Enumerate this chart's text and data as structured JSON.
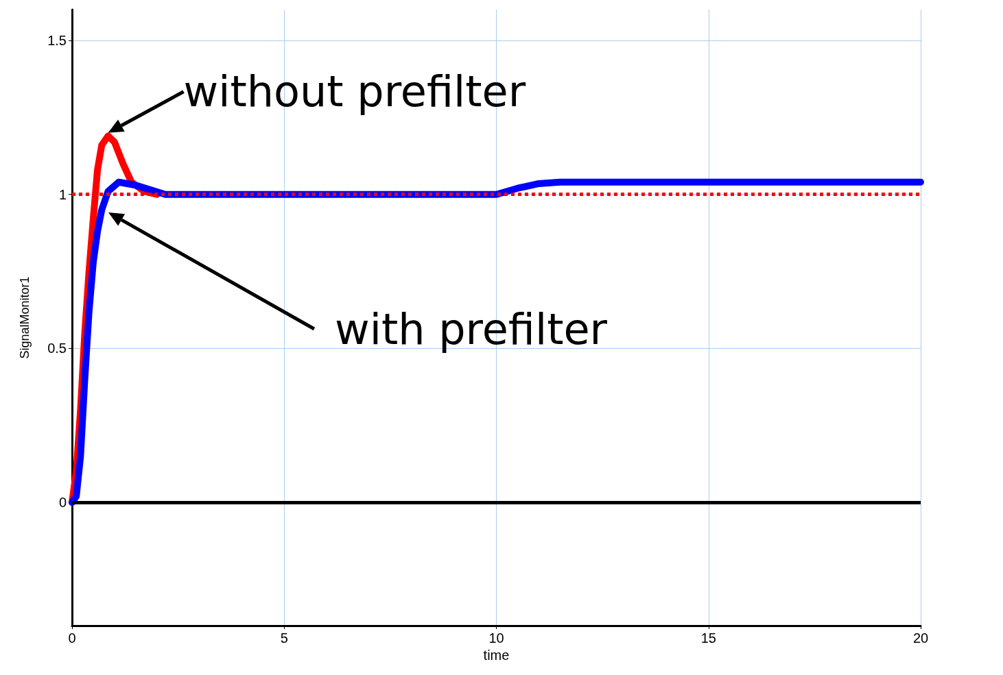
{
  "chart_data": {
    "type": "line",
    "xlabel": "time",
    "ylabel": "SignalMonitor1",
    "xlim": [
      0,
      20
    ],
    "ylim": [
      -0.4,
      1.6
    ],
    "xticks": [
      0,
      5,
      10,
      15,
      20
    ],
    "yticks": [
      0,
      0.5,
      1,
      1.5
    ],
    "grid": true,
    "line_style": "solid",
    "series": [
      {
        "color": "#ff0000",
        "x": [
          0,
          0.1,
          0.2,
          0.3,
          0.4,
          0.5,
          0.6,
          0.7,
          0.85,
          1.0,
          1.2,
          1.4,
          1.7,
          2.0
        ],
        "values": [
          0,
          0.1,
          0.3,
          0.55,
          0.75,
          0.92,
          1.08,
          1.16,
          1.19,
          1.17,
          1.1,
          1.04,
          1.01,
          1.0
        ]
      },
      {
        "color": "#0000ff",
        "x": [
          0,
          0.1,
          0.2,
          0.3,
          0.4,
          0.5,
          0.6,
          0.7,
          0.85,
          1.1,
          1.5,
          2.2,
          10,
          10.5,
          11,
          11.5,
          20
        ],
        "values": [
          0,
          0.02,
          0.15,
          0.4,
          0.62,
          0.78,
          0.88,
          0.95,
          1.01,
          1.04,
          1.03,
          1.0,
          1.0,
          1.02,
          1.035,
          1.04,
          1.04
        ]
      }
    ],
    "ref_lines": [
      {
        "axis": "y",
        "value": 1,
        "color": "#ff0000",
        "line_style": "dotted"
      },
      {
        "axis": "y",
        "value": 0,
        "color": "#000000",
        "line_style": "solid"
      }
    ],
    "annotations": [
      {
        "text": "without prefilter",
        "x": 0.85,
        "y": 1.2
      },
      "with prefilter"
    ]
  }
}
